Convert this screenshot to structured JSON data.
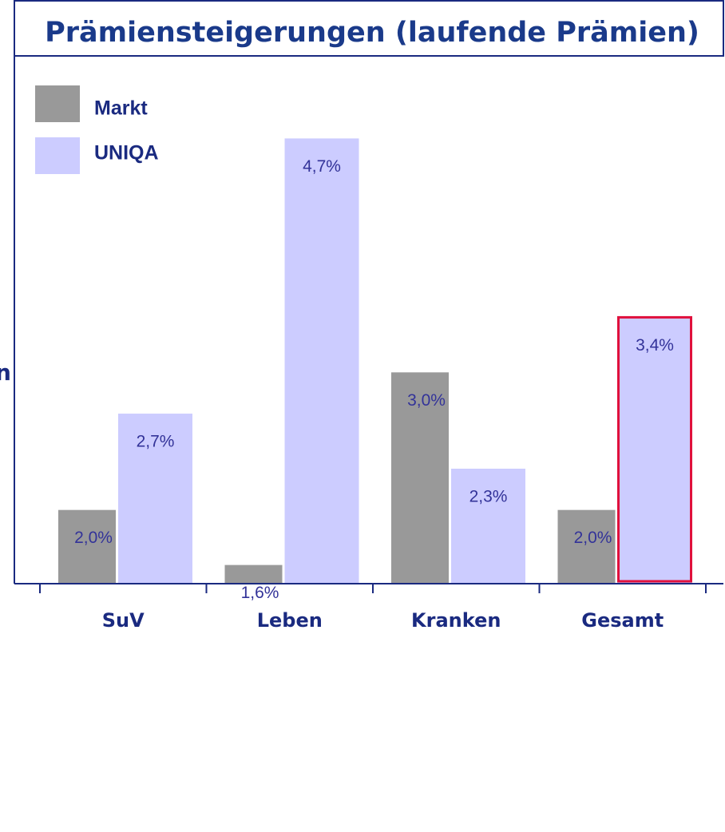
{
  "chart_data": {
    "type": "bar",
    "title": "Prämiensteigerungen (laufende Prämien)",
    "edge_text": "n",
    "categories": [
      "SuV",
      "Leben",
      "Kranken",
      "Gesamt"
    ],
    "series": [
      {
        "name": "Markt",
        "color": "#999999",
        "values": [
          2.0,
          1.6,
          3.0,
          2.0
        ],
        "value_labels": [
          "2,0%",
          "1,6%",
          "3,0%",
          "2,0%"
        ]
      },
      {
        "name": "UNIQA",
        "color": "#ccccff",
        "values": [
          2.7,
          4.7,
          2.3,
          3.4
        ],
        "value_labels": [
          "2,7%",
          "4,7%",
          "2,3%",
          "3,4%"
        ]
      }
    ],
    "ylim": [
      1.47,
      5.3
    ],
    "highlight": [
      1,
      3
    ],
    "highlight_color": "#e0103c",
    "legend": "upper left"
  }
}
